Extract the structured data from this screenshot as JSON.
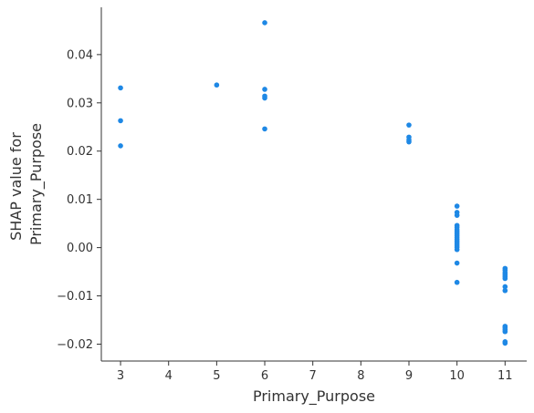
{
  "chart_data": {
    "type": "scatter",
    "xlabel": "Primary_Purpose",
    "ylabel_lines": [
      "SHAP value for",
      "Primary_Purpose"
    ],
    "xlim": [
      2.6,
      11.45
    ],
    "ylim": [
      -0.0235,
      0.0498
    ],
    "x_ticks": [
      3,
      4,
      5,
      6,
      7,
      8,
      9,
      10,
      11
    ],
    "x_tick_labels": [
      "3",
      "4",
      "5",
      "6",
      "7",
      "8",
      "9",
      "10",
      "11"
    ],
    "y_ticks": [
      -0.02,
      -0.01,
      0.0,
      0.01,
      0.02,
      0.03,
      0.04
    ],
    "y_tick_labels": [
      "−0.02",
      "−0.01",
      "0.00",
      "0.01",
      "0.02",
      "0.03",
      "0.04"
    ],
    "point_color": "#1e88e5",
    "grid": false,
    "points": [
      {
        "x": 3,
        "y": 0.0331
      },
      {
        "x": 3,
        "y": 0.0263
      },
      {
        "x": 3,
        "y": 0.0211
      },
      {
        "x": 5,
        "y": 0.0337
      },
      {
        "x": 6,
        "y": 0.0466
      },
      {
        "x": 6,
        "y": 0.0328
      },
      {
        "x": 6,
        "y": 0.0314
      },
      {
        "x": 6,
        "y": 0.031
      },
      {
        "x": 6,
        "y": 0.0246
      },
      {
        "x": 9,
        "y": 0.0254
      },
      {
        "x": 9,
        "y": 0.0229
      },
      {
        "x": 9,
        "y": 0.0223
      },
      {
        "x": 9,
        "y": 0.0219
      },
      {
        "x": 10,
        "y": 0.0086
      },
      {
        "x": 10,
        "y": 0.0073
      },
      {
        "x": 10,
        "y": 0.0067
      },
      {
        "x": 10,
        "y": 0.0046
      },
      {
        "x": 10,
        "y": 0.0042
      },
      {
        "x": 10,
        "y": 0.0037
      },
      {
        "x": 10,
        "y": 0.0033
      },
      {
        "x": 10,
        "y": 0.0029
      },
      {
        "x": 10,
        "y": 0.0025
      },
      {
        "x": 10,
        "y": 0.0021
      },
      {
        "x": 10,
        "y": 0.0017
      },
      {
        "x": 10,
        "y": 0.0013
      },
      {
        "x": 10,
        "y": 0.0009
      },
      {
        "x": 10,
        "y": 0.0005
      },
      {
        "x": 10,
        "y": 0.0001
      },
      {
        "x": 10,
        "y": -0.0004
      },
      {
        "x": 10,
        "y": -0.0032
      },
      {
        "x": 10,
        "y": -0.0072
      },
      {
        "x": 11,
        "y": -0.0043
      },
      {
        "x": 11,
        "y": -0.0047
      },
      {
        "x": 11,
        "y": -0.0052
      },
      {
        "x": 11,
        "y": -0.0056
      },
      {
        "x": 11,
        "y": -0.006
      },
      {
        "x": 11,
        "y": -0.0064
      },
      {
        "x": 11,
        "y": -0.0081
      },
      {
        "x": 11,
        "y": -0.0089
      },
      {
        "x": 11,
        "y": -0.0163
      },
      {
        "x": 11,
        "y": -0.0166
      },
      {
        "x": 11,
        "y": -0.017
      },
      {
        "x": 11,
        "y": -0.0174
      },
      {
        "x": 11,
        "y": -0.0195
      },
      {
        "x": 11,
        "y": -0.0198
      }
    ]
  }
}
